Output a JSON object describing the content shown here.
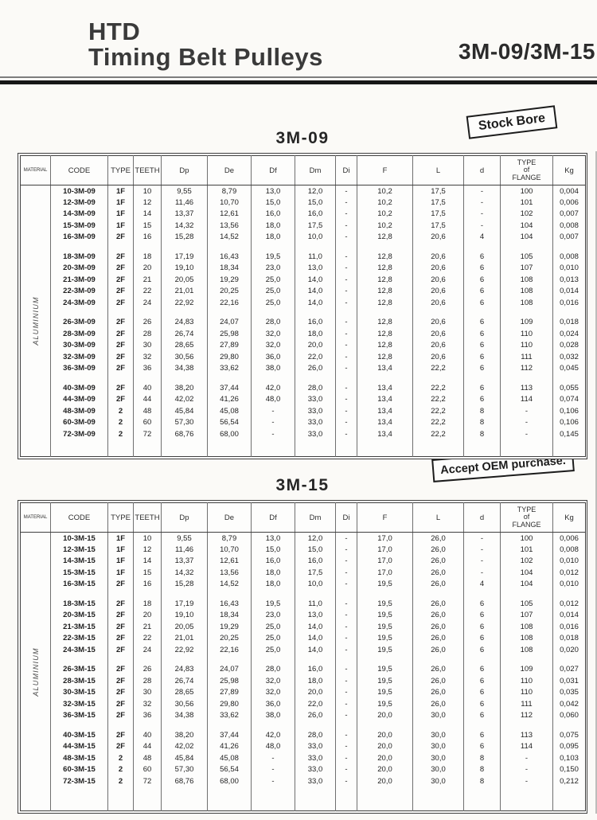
{
  "page": {
    "brand_line1": "HTD",
    "brand_line2": "Timing Belt Pulleys",
    "model_range": "3M-09/3M-15",
    "stamps": {
      "stock_bore": "Stock Bore",
      "oem": "Accept OEM purchase."
    }
  },
  "table_columns": [
    {
      "key": "material",
      "label": "MATERIAL"
    },
    {
      "key": "code",
      "label": "CODE"
    },
    {
      "key": "type",
      "label": "TYPE"
    },
    {
      "key": "teeth",
      "label": "TEETH"
    },
    {
      "key": "dp",
      "label": "Dp"
    },
    {
      "key": "de",
      "label": "De"
    },
    {
      "key": "df",
      "label": "Df"
    },
    {
      "key": "dm",
      "label": "Dm"
    },
    {
      "key": "di",
      "label": "Di"
    },
    {
      "key": "f",
      "label": "F"
    },
    {
      "key": "l",
      "label": "L"
    },
    {
      "key": "d",
      "label": "d"
    },
    {
      "key": "flange",
      "label": "TYPE\nof\nFLANGE"
    },
    {
      "key": "kg",
      "label": "Kg"
    }
  ],
  "tables": [
    {
      "title": "3M-09",
      "material": "ALUMINIUM",
      "groups": [
        [
          [
            "10-3M-09",
            "1F",
            "10",
            "9,55",
            "8,79",
            "13,0",
            "12,0",
            "-",
            "10,2",
            "17,5",
            "-",
            "100",
            "0,004"
          ],
          [
            "12-3M-09",
            "1F",
            "12",
            "11,46",
            "10,70",
            "15,0",
            "15,0",
            "-",
            "10,2",
            "17,5",
            "-",
            "101",
            "0,006"
          ],
          [
            "14-3M-09",
            "1F",
            "14",
            "13,37",
            "12,61",
            "16,0",
            "16,0",
            "-",
            "10,2",
            "17,5",
            "-",
            "102",
            "0,007"
          ],
          [
            "15-3M-09",
            "1F",
            "15",
            "14,32",
            "13,56",
            "18,0",
            "17,5",
            "-",
            "10,2",
            "17,5",
            "-",
            "104",
            "0,008"
          ],
          [
            "16-3M-09",
            "2F",
            "16",
            "15,28",
            "14,52",
            "18,0",
            "10,0",
            "-",
            "12,8",
            "20,6",
            "4",
            "104",
            "0,007"
          ]
        ],
        [
          [
            "18-3M-09",
            "2F",
            "18",
            "17,19",
            "16,43",
            "19,5",
            "11,0",
            "-",
            "12,8",
            "20,6",
            "6",
            "105",
            "0,008"
          ],
          [
            "20-3M-09",
            "2F",
            "20",
            "19,10",
            "18,34",
            "23,0",
            "13,0",
            "-",
            "12,8",
            "20,6",
            "6",
            "107",
            "0,010"
          ],
          [
            "21-3M-09",
            "2F",
            "21",
            "20,05",
            "19,29",
            "25,0",
            "14,0",
            "-",
            "12,8",
            "20,6",
            "6",
            "108",
            "0,013"
          ],
          [
            "22-3M-09",
            "2F",
            "22",
            "21,01",
            "20,25",
            "25,0",
            "14,0",
            "-",
            "12,8",
            "20,6",
            "6",
            "108",
            "0,014"
          ],
          [
            "24-3M-09",
            "2F",
            "24",
            "22,92",
            "22,16",
            "25,0",
            "14,0",
            "-",
            "12,8",
            "20,6",
            "6",
            "108",
            "0,016"
          ]
        ],
        [
          [
            "26-3M-09",
            "2F",
            "26",
            "24,83",
            "24,07",
            "28,0",
            "16,0",
            "-",
            "12,8",
            "20,6",
            "6",
            "109",
            "0,018"
          ],
          [
            "28-3M-09",
            "2F",
            "28",
            "26,74",
            "25,98",
            "32,0",
            "18,0",
            "-",
            "12,8",
            "20,6",
            "6",
            "110",
            "0,024"
          ],
          [
            "30-3M-09",
            "2F",
            "30",
            "28,65",
            "27,89",
            "32,0",
            "20,0",
            "-",
            "12,8",
            "20,6",
            "6",
            "110",
            "0,028"
          ],
          [
            "32-3M-09",
            "2F",
            "32",
            "30,56",
            "29,80",
            "36,0",
            "22,0",
            "-",
            "12,8",
            "20,6",
            "6",
            "111",
            "0,032"
          ],
          [
            "36-3M-09",
            "2F",
            "36",
            "34,38",
            "33,62",
            "38,0",
            "26,0",
            "-",
            "13,4",
            "22,2",
            "6",
            "112",
            "0,045"
          ]
        ],
        [
          [
            "40-3M-09",
            "2F",
            "40",
            "38,20",
            "37,44",
            "42,0",
            "28,0",
            "-",
            "13,4",
            "22,2",
            "6",
            "113",
            "0,055"
          ],
          [
            "44-3M-09",
            "2F",
            "44",
            "42,02",
            "41,26",
            "48,0",
            "33,0",
            "-",
            "13,4",
            "22,2",
            "6",
            "114",
            "0,074"
          ],
          [
            "48-3M-09",
            "2",
            "48",
            "45,84",
            "45,08",
            "-",
            "33,0",
            "-",
            "13,4",
            "22,2",
            "8",
            "-",
            "0,106"
          ],
          [
            "60-3M-09",
            "2",
            "60",
            "57,30",
            "56,54",
            "-",
            "33,0",
            "-",
            "13,4",
            "22,2",
            "8",
            "-",
            "0,106"
          ],
          [
            "72-3M-09",
            "2",
            "72",
            "68,76",
            "68,00",
            "-",
            "33,0",
            "-",
            "13,4",
            "22,2",
            "8",
            "-",
            "0,145"
          ]
        ]
      ]
    },
    {
      "title": "3M-15",
      "material": "ALUMINIUM",
      "groups": [
        [
          [
            "10-3M-15",
            "1F",
            "10",
            "9,55",
            "8,79",
            "13,0",
            "12,0",
            "-",
            "17,0",
            "26,0",
            "-",
            "100",
            "0,006"
          ],
          [
            "12-3M-15",
            "1F",
            "12",
            "11,46",
            "10,70",
            "15,0",
            "15,0",
            "-",
            "17,0",
            "26,0",
            "-",
            "101",
            "0,008"
          ],
          [
            "14-3M-15",
            "1F",
            "14",
            "13,37",
            "12,61",
            "16,0",
            "16,0",
            "-",
            "17,0",
            "26,0",
            "-",
            "102",
            "0,010"
          ],
          [
            "15-3M-15",
            "1F",
            "15",
            "14,32",
            "13,56",
            "18,0",
            "17,5",
            "-",
            "17,0",
            "26,0",
            "-",
            "104",
            "0,012"
          ],
          [
            "16-3M-15",
            "2F",
            "16",
            "15,28",
            "14,52",
            "18,0",
            "10,0",
            "-",
            "19,5",
            "26,0",
            "4",
            "104",
            "0,010"
          ]
        ],
        [
          [
            "18-3M-15",
            "2F",
            "18",
            "17,19",
            "16,43",
            "19,5",
            "11,0",
            "-",
            "19,5",
            "26,0",
            "6",
            "105",
            "0,012"
          ],
          [
            "20-3M-15",
            "2F",
            "20",
            "19,10",
            "18,34",
            "23,0",
            "13,0",
            "-",
            "19,5",
            "26,0",
            "6",
            "107",
            "0,014"
          ],
          [
            "21-3M-15",
            "2F",
            "21",
            "20,05",
            "19,29",
            "25,0",
            "14,0",
            "-",
            "19,5",
            "26,0",
            "6",
            "108",
            "0,016"
          ],
          [
            "22-3M-15",
            "2F",
            "22",
            "21,01",
            "20,25",
            "25,0",
            "14,0",
            "-",
            "19,5",
            "26,0",
            "6",
            "108",
            "0,018"
          ],
          [
            "24-3M-15",
            "2F",
            "24",
            "22,92",
            "22,16",
            "25,0",
            "14,0",
            "-",
            "19,5",
            "26,0",
            "6",
            "108",
            "0,020"
          ]
        ],
        [
          [
            "26-3M-15",
            "2F",
            "26",
            "24,83",
            "24,07",
            "28,0",
            "16,0",
            "-",
            "19,5",
            "26,0",
            "6",
            "109",
            "0,027"
          ],
          [
            "28-3M-15",
            "2F",
            "28",
            "26,74",
            "25,98",
            "32,0",
            "18,0",
            "-",
            "19,5",
            "26,0",
            "6",
            "110",
            "0,031"
          ],
          [
            "30-3M-15",
            "2F",
            "30",
            "28,65",
            "27,89",
            "32,0",
            "20,0",
            "-",
            "19,5",
            "26,0",
            "6",
            "110",
            "0,035"
          ],
          [
            "32-3M-15",
            "2F",
            "32",
            "30,56",
            "29,80",
            "36,0",
            "22,0",
            "-",
            "19,5",
            "26,0",
            "6",
            "111",
            "0,042"
          ],
          [
            "36-3M-15",
            "2F",
            "36",
            "34,38",
            "33,62",
            "38,0",
            "26,0",
            "-",
            "20,0",
            "30,0",
            "6",
            "112",
            "0,060"
          ]
        ],
        [
          [
            "40-3M-15",
            "2F",
            "40",
            "38,20",
            "37,44",
            "42,0",
            "28,0",
            "-",
            "20,0",
            "30,0",
            "6",
            "113",
            "0,075"
          ],
          [
            "44-3M-15",
            "2F",
            "44",
            "42,02",
            "41,26",
            "48,0",
            "33,0",
            "-",
            "20,0",
            "30,0",
            "6",
            "114",
            "0,095"
          ],
          [
            "48-3M-15",
            "2",
            "48",
            "45,84",
            "45,08",
            "-",
            "33,0",
            "-",
            "20,0",
            "30,0",
            "8",
            "-",
            "0,103"
          ],
          [
            "60-3M-15",
            "2",
            "60",
            "57,30",
            "56,54",
            "-",
            "33,0",
            "-",
            "20,0",
            "30,0",
            "8",
            "-",
            "0,150"
          ],
          [
            "72-3M-15",
            "2",
            "72",
            "68,76",
            "68,00",
            "-",
            "33,0",
            "-",
            "20,0",
            "30,0",
            "8",
            "-",
            "0,212"
          ]
        ]
      ]
    }
  ]
}
